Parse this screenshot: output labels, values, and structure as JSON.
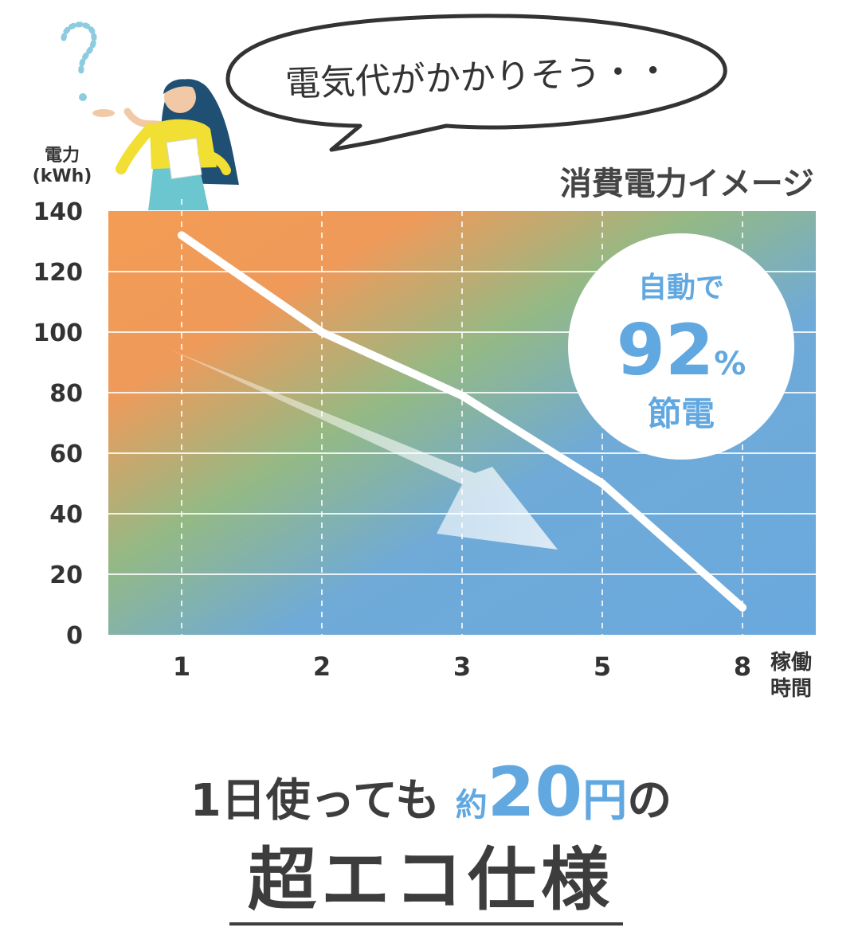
{
  "colors": {
    "orange": "#f29c55",
    "green": "#94b985",
    "blue": "#6aa9de",
    "accent_text": "#62a8e0",
    "dark_text": "#3d3d3d",
    "line": "#ffffff"
  },
  "speech_bubble": {
    "text": "電気代がかかりそう・・"
  },
  "illustration": {
    "figure": "woman-thinking",
    "symbol": "question-mark"
  },
  "chart_data": {
    "type": "line",
    "title": "消費電力イメージ",
    "ylabel_lines": [
      "電力",
      "(kWh)"
    ],
    "xlabel_lines": [
      "稼働",
      "時間"
    ],
    "categories": [
      "1",
      "2",
      "3",
      "5",
      "8"
    ],
    "series": [
      {
        "values": [
          132,
          100,
          79,
          50,
          9
        ]
      }
    ],
    "ylim": [
      0,
      140
    ],
    "yticks": [
      0,
      20,
      40,
      60,
      80,
      100,
      120,
      140
    ],
    "grid": {
      "horizontal": true,
      "vertical_dashed": true
    },
    "callout": {
      "line1": "自動で",
      "number": "92",
      "unit": "%",
      "line2": "節電"
    },
    "trend_arrow": "down"
  },
  "headline": {
    "line1_pre": "1日使っても",
    "line1_about": "約",
    "line1_amount": "20",
    "line1_unit": "円",
    "line1_post": "の",
    "line2": "超エコ仕様"
  }
}
